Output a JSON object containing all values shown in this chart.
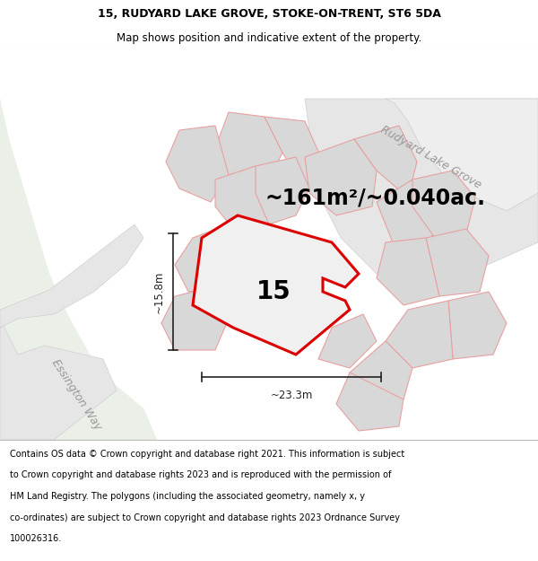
{
  "title_line1": "15, RUDYARD LAKE GROVE, STOKE-ON-TRENT, ST6 5DA",
  "title_line2": "Map shows position and indicative extent of the property.",
  "area_label": "~161m²/~0.040ac.",
  "number_label": "15",
  "dim_height": "~15.8m",
  "dim_width": "~23.3m",
  "street_label1": "Rudyard Lake Grove",
  "street_label2": "Essington Way",
  "footer_lines": [
    "Contains OS data © Crown copyright and database right 2021. This information is subject",
    "to Crown copyright and database rights 2023 and is reproduced with the permission of",
    "HM Land Registry. The polygons (including the associated geometry, namely x, y",
    "co-ordinates) are subject to Crown copyright and database rights 2023 Ordnance Survey",
    "100026316."
  ],
  "title_fontsize": 9.0,
  "subtitle_fontsize": 8.5,
  "area_fontsize": 17,
  "number_fontsize": 20,
  "dim_fontsize": 8.5,
  "street_fontsize": 9,
  "footer_fontsize": 7.0,
  "map_bg": "#ffffff",
  "green_light": "#eaf0e8",
  "road_color": "#e6e6e6",
  "road_edge": "#d0d0d0",
  "plot_fill": "#d8d8d8",
  "plot_edge": "#e8a0a0",
  "highlight_edge": "#dd0000",
  "highlight_fill": "#f0f0f0",
  "dim_color": "#222222"
}
